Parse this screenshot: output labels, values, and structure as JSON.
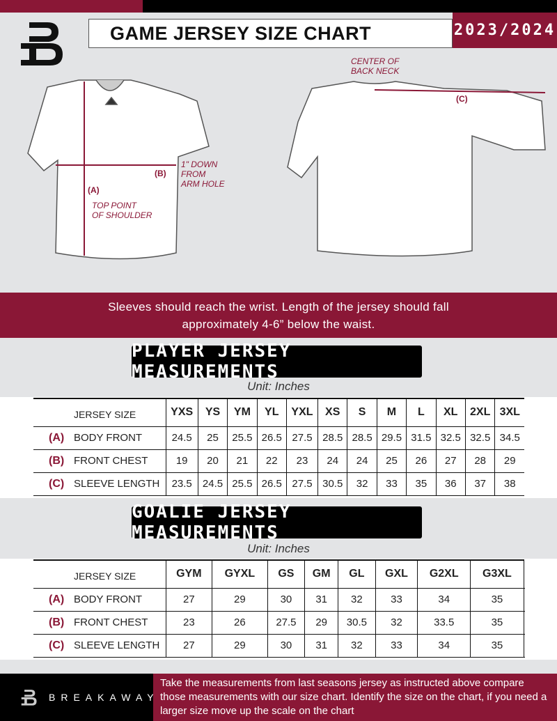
{
  "header": {
    "title": "GAME JERSEY SIZE CHART",
    "season": "2023/2024"
  },
  "diagram": {
    "front_labels": {
      "a": "(A)",
      "b": "(B)",
      "arm": "1\" DOWN\nFROM\nARM HOLE",
      "shoulder": "TOP POINT\nOF SHOULDER"
    },
    "back_labels": {
      "neck": "CENTER OF\nBACK NECK",
      "c": "(C)"
    }
  },
  "instructions": "Sleeves should reach the wrist. Length of the jersey should fall approximately 4-6” below the waist.",
  "player": {
    "heading": "PLAYER JERSEY MEASUREMENTS",
    "unit": "Unit: Inches",
    "size_label": "JERSEY SIZE",
    "sizes": [
      "YXS",
      "YS",
      "YM",
      "YL",
      "YXL",
      "XS",
      "S",
      "M",
      "L",
      "XL",
      "2XL",
      "3XL"
    ],
    "rows": [
      {
        "letter": "(A)",
        "label": "BODY FRONT",
        "values": [
          "24.5",
          "25",
          "25.5",
          "26.5",
          "27.5",
          "28.5",
          "28.5",
          "29.5",
          "31.5",
          "32.5",
          "32.5",
          "34.5"
        ]
      },
      {
        "letter": "(B)",
        "label": "FRONT CHEST",
        "values": [
          "19",
          "20",
          "21",
          "22",
          "23",
          "24",
          "24",
          "25",
          "26",
          "27",
          "28",
          "29"
        ]
      },
      {
        "letter": "(C)",
        "label": "SLEEVE LENGTH",
        "values": [
          "23.5",
          "24.5",
          "25.5",
          "26.5",
          "27.5",
          "30.5",
          "32",
          "33",
          "35",
          "36",
          "37",
          "38"
        ]
      }
    ]
  },
  "goalie": {
    "heading": "GOALIE JERSEY MEASUREMENTS",
    "unit": "Unit: Inches",
    "size_label": "JERSEY SIZE",
    "sizes": [
      "GYM",
      "GYXL",
      "GS",
      "GM",
      "GL",
      "GXL",
      "G2XL",
      "G3XL",
      ""
    ],
    "rows": [
      {
        "letter": "(A)",
        "label": "BODY FRONT",
        "values": [
          "27",
          "29",
          "30",
          "31",
          "32",
          "33",
          "34",
          "35",
          ""
        ]
      },
      {
        "letter": "(B)",
        "label": "FRONT CHEST",
        "values": [
          "23",
          "26",
          "27.5",
          "29",
          "30.5",
          "32",
          "33.5",
          "35",
          ""
        ]
      },
      {
        "letter": "(C)",
        "label": "SLEEVE LENGTH",
        "values": [
          "27",
          "29",
          "30",
          "31",
          "32",
          "33",
          "34",
          "35",
          ""
        ]
      }
    ]
  },
  "footer": {
    "brand": "BREAKAWAY",
    "text": "Take the measurements from last seasons jersey as instructed above compare those measurements  with our size chart. Identify the size on the chart, if you need a larger size move up the scale on the chart"
  },
  "colors": {
    "accent": "#8a1736",
    "black": "#000000",
    "background": "#e3e4e6"
  }
}
